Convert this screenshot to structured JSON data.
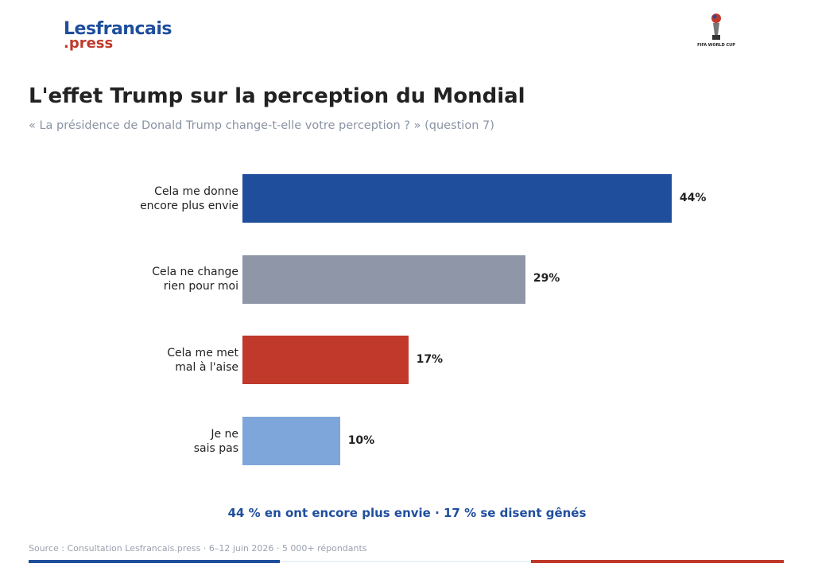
{
  "header": {
    "logo_main": "Lesfrancais",
    "logo_sub": ".press",
    "partner_logo": "FIFA WORLD CUP"
  },
  "chart_data": {
    "type": "bar",
    "orientation": "horizontal",
    "title": "L'effet Trump sur la perception du Mondial",
    "subtitle": "« La présidence de Donald Trump change-t-elle votre perception ? » (question 7)",
    "categories": [
      "Cela me donne\nencore plus envie",
      "Cela ne change\nrien pour moi",
      "Cela me met\nmal à l'aise",
      "Je ne\nsais pas"
    ],
    "values": [
      44,
      29,
      17,
      10
    ],
    "value_labels": [
      "44%",
      "29%",
      "17%",
      "10%"
    ],
    "colors": [
      "#1f4e9c",
      "#8e96a8",
      "#c0392b",
      "#7fa6da"
    ],
    "annotation": "44 % en ont encore plus envie · 17 % se disent gênés",
    "source": "Source : Consultation Lesfrancais.press · 6–12 juin 2026 · 5 000+ répondants"
  }
}
